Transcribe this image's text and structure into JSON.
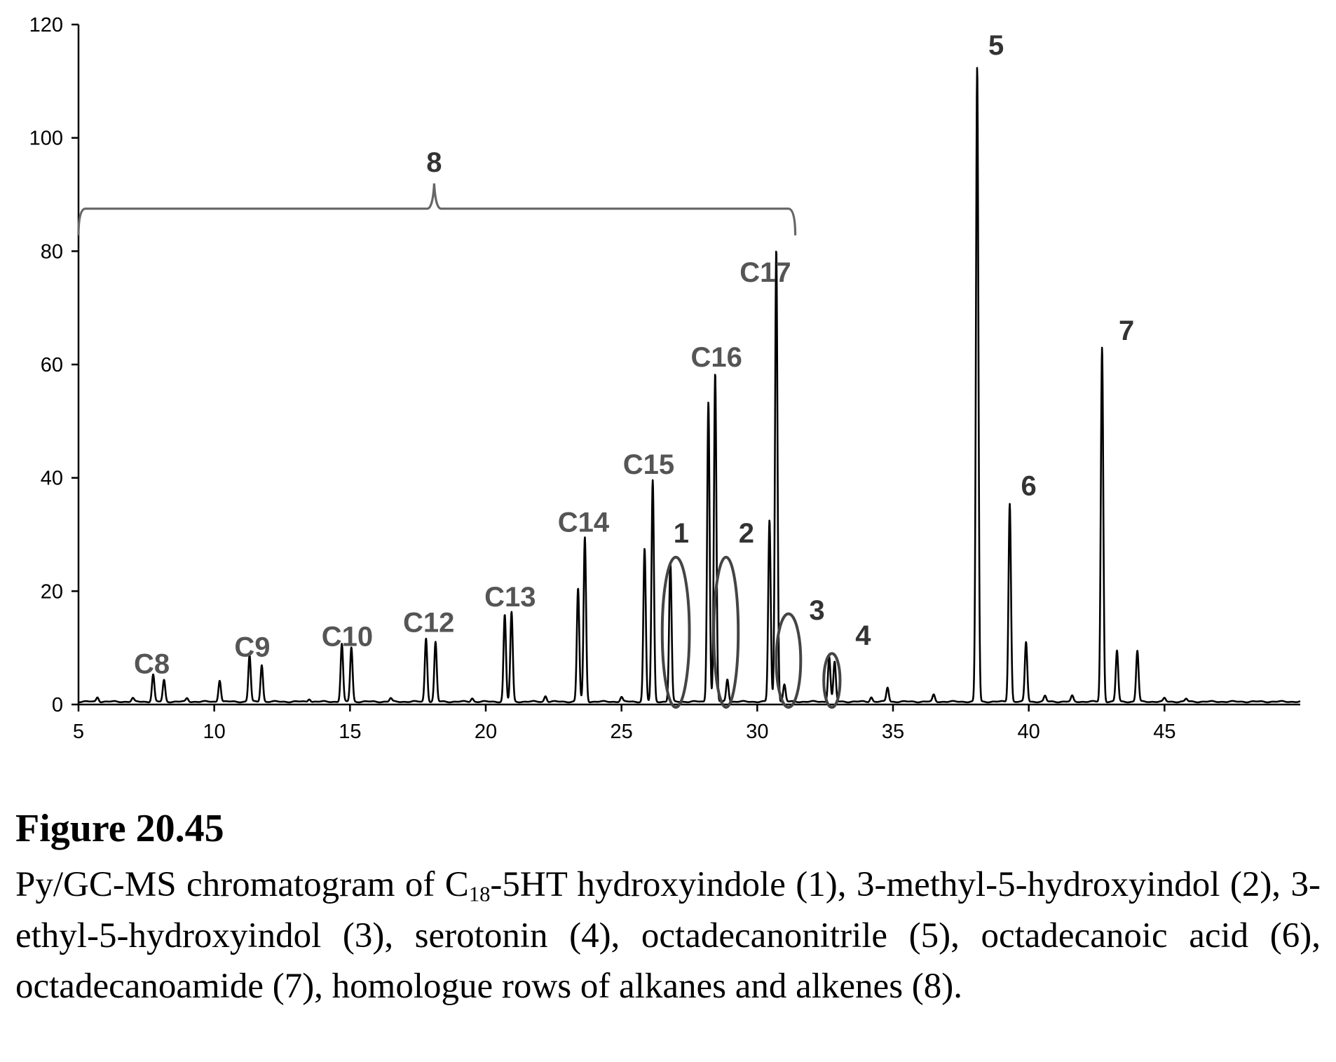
{
  "chart_data": {
    "type": "line",
    "xlim": [
      5,
      50
    ],
    "ylim": [
      0,
      120
    ],
    "xticks": [
      5,
      10,
      15,
      20,
      25,
      30,
      35,
      40,
      45
    ],
    "yticks": [
      0,
      20,
      40,
      60,
      80,
      100,
      120
    ],
    "xlabel": "",
    "ylabel": "",
    "grid": false,
    "series": [
      {
        "peaks": [
          {
            "x": 5.7,
            "y": 0.8
          },
          {
            "x": 7.0,
            "y": 0.6
          },
          {
            "x": 7.75,
            "y": 4.8
          },
          {
            "x": 8.15,
            "y": 3.8
          },
          {
            "x": 9.0,
            "y": 0.6
          },
          {
            "x": 10.2,
            "y": 3.8
          },
          {
            "x": 11.3,
            "y": 8.2
          },
          {
            "x": 11.75,
            "y": 6.5
          },
          {
            "x": 13.5,
            "y": 0.5
          },
          {
            "x": 14.7,
            "y": 10.2
          },
          {
            "x": 15.05,
            "y": 9.6
          },
          {
            "x": 16.5,
            "y": 0.6
          },
          {
            "x": 17.8,
            "y": 11.2
          },
          {
            "x": 18.15,
            "y": 10.5
          },
          {
            "x": 19.5,
            "y": 0.6
          },
          {
            "x": 20.7,
            "y": 15.3
          },
          {
            "x": 20.95,
            "y": 15.8
          },
          {
            "x": 22.2,
            "y": 1.0
          },
          {
            "x": 23.4,
            "y": 20.0
          },
          {
            "x": 23.65,
            "y": 29.0
          },
          {
            "x": 25.0,
            "y": 0.8
          },
          {
            "x": 25.85,
            "y": 27.0
          },
          {
            "x": 26.15,
            "y": 39.0
          },
          {
            "x": 26.8,
            "y": 24.5
          },
          {
            "x": 28.2,
            "y": 53.0
          },
          {
            "x": 28.45,
            "y": 58.0
          },
          {
            "x": 28.9,
            "y": 4.0
          },
          {
            "x": 30.45,
            "y": 32.0
          },
          {
            "x": 30.7,
            "y": 80.0
          },
          {
            "x": 31.0,
            "y": 3.0
          },
          {
            "x": 32.65,
            "y": 8.0
          },
          {
            "x": 32.85,
            "y": 7.0
          },
          {
            "x": 34.2,
            "y": 0.8
          },
          {
            "x": 34.8,
            "y": 2.5
          },
          {
            "x": 36.5,
            "y": 1.2
          },
          {
            "x": 38.1,
            "y": 112.0
          },
          {
            "x": 39.3,
            "y": 35.0
          },
          {
            "x": 39.9,
            "y": 10.5
          },
          {
            "x": 40.6,
            "y": 1.0
          },
          {
            "x": 41.6,
            "y": 1.0
          },
          {
            "x": 42.7,
            "y": 62.5
          },
          {
            "x": 43.25,
            "y": 9.0
          },
          {
            "x": 44.0,
            "y": 9.0
          },
          {
            "x": 45.0,
            "y": 0.6
          },
          {
            "x": 45.8,
            "y": 0.5
          }
        ]
      }
    ],
    "annotations": [
      {
        "label": "C8",
        "x": 7.7,
        "y": 5.5
      },
      {
        "label": "C9",
        "x": 11.4,
        "y": 8.5
      },
      {
        "label": "C10",
        "x": 14.9,
        "y": 10.3
      },
      {
        "label": "C12",
        "x": 17.9,
        "y": 12.8
      },
      {
        "label": "C13",
        "x": 20.9,
        "y": 17.3
      },
      {
        "label": "C14",
        "x": 23.6,
        "y": 30.5
      },
      {
        "label": "C15",
        "x": 26.0,
        "y": 40.7
      },
      {
        "label": "C16",
        "x": 28.5,
        "y": 59.6
      },
      {
        "label": "C17",
        "x": 30.3,
        "y": 74.6
      },
      {
        "label": "1",
        "x": 27.2,
        "y": 28.6
      },
      {
        "label": "2",
        "x": 29.6,
        "y": 28.6
      },
      {
        "label": "3",
        "x": 32.2,
        "y": 15.0
      },
      {
        "label": "4",
        "x": 33.9,
        "y": 10.5
      },
      {
        "label": "5",
        "x": 38.8,
        "y": 114.7
      },
      {
        "label": "6",
        "x": 40.0,
        "y": 36.9
      },
      {
        "label": "7",
        "x": 43.6,
        "y": 64.3
      },
      {
        "label": "8",
        "x": 18.1,
        "y": 94.0
      }
    ],
    "circled_peaks": [
      {
        "label": "1",
        "x_from": 26.5,
        "x_to": 27.5,
        "y_from": -0.5,
        "y_to": 26.0
      },
      {
        "label": "2",
        "x_from": 28.4,
        "x_to": 29.3,
        "y_from": -0.5,
        "y_to": 26.0
      },
      {
        "label": "3",
        "x_from": 30.7,
        "x_to": 31.6,
        "y_from": -0.5,
        "y_to": 16.0
      },
      {
        "label": "4",
        "x_from": 32.45,
        "x_to": 33.05,
        "y_from": -0.5,
        "y_to": 9.0
      }
    ],
    "bracket": {
      "label": "8",
      "x_from": 5.0,
      "x_to": 31.4,
      "y": 87.5
    }
  },
  "caption": {
    "title": "Figure 20.45",
    "text_before": "Py/GC-MS chromatogram of C",
    "subscript": "18",
    "text_after": "-5HT hydroxyindole (1), 3-methyl-5-hydroxyindol (2), 3-ethyl-5-hydroxyindol (3), serotonin (4), octadecanonitrile (5), octadecanoic acid (6), octadecanoamide (7), homologue rows of alkanes and alkenes (8)."
  }
}
